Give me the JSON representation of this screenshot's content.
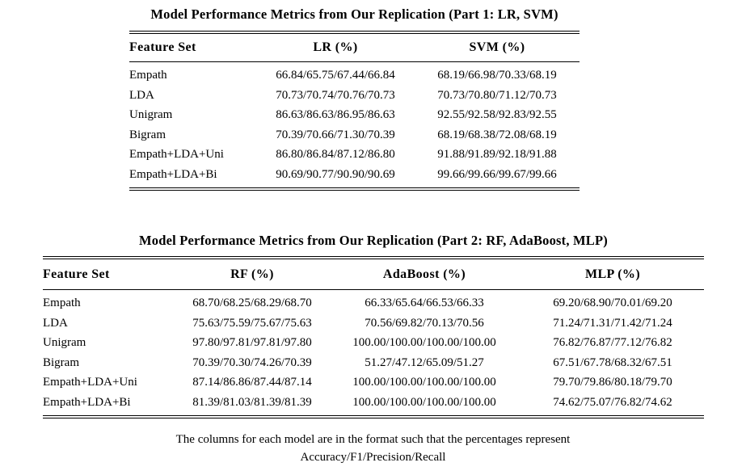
{
  "table1": {
    "title": "Model Performance Metrics from Our Replication (Part 1: LR, SVM)",
    "headers": [
      "Feature Set",
      "LR (%)",
      "SVM (%)"
    ],
    "rows": [
      [
        "Empath",
        "66.84/65.75/67.44/66.84",
        "68.19/66.98/70.33/68.19"
      ],
      [
        "LDA",
        "70.73/70.74/70.76/70.73",
        "70.73/70.80/71.12/70.73"
      ],
      [
        "Unigram",
        "86.63/86.63/86.95/86.63",
        "92.55/92.58/92.83/92.55"
      ],
      [
        "Bigram",
        "70.39/70.66/71.30/70.39",
        "68.19/68.38/72.08/68.19"
      ],
      [
        "Empath+LDA+Uni",
        "86.80/86.84/87.12/86.80",
        "91.88/91.89/92.18/91.88"
      ],
      [
        "Empath+LDA+Bi",
        "90.69/90.77/90.90/90.69",
        "99.66/99.66/99.67/99.66"
      ]
    ]
  },
  "table2": {
    "title": "Model Performance Metrics from Our Replication (Part 2: RF, AdaBoost, MLP)",
    "headers": [
      "Feature Set",
      "RF (%)",
      "AdaBoost (%)",
      "MLP (%)"
    ],
    "rows": [
      [
        "Empath",
        "68.70/68.25/68.29/68.70",
        "66.33/65.64/66.53/66.33",
        "69.20/68.90/70.01/69.20"
      ],
      [
        "LDA",
        "75.63/75.59/75.67/75.63",
        "70.56/69.82/70.13/70.56",
        "71.24/71.31/71.42/71.24"
      ],
      [
        "Unigram",
        "97.80/97.81/97.81/97.80",
        "100.00/100.00/100.00/100.00",
        "76.82/76.87/77.12/76.82"
      ],
      [
        "Bigram",
        "70.39/70.30/74.26/70.39",
        "51.27/47.12/65.09/51.27",
        "67.51/67.78/68.32/67.51"
      ],
      [
        "Empath+LDA+Uni",
        "87.14/86.86/87.44/87.14",
        "100.00/100.00/100.00/100.00",
        "79.70/79.86/80.18/79.70"
      ],
      [
        "Empath+LDA+Bi",
        "81.39/81.03/81.39/81.39",
        "100.00/100.00/100.00/100.00",
        "74.62/75.07/76.82/74.62"
      ]
    ]
  },
  "footnote": {
    "line1": "The columns for each model are in the format such that the percentages represent",
    "line2": "Accuracy/F1/Precision/Recall"
  },
  "colors": {
    "background": "#ffffff",
    "text": "#000000",
    "rule": "#000000"
  }
}
